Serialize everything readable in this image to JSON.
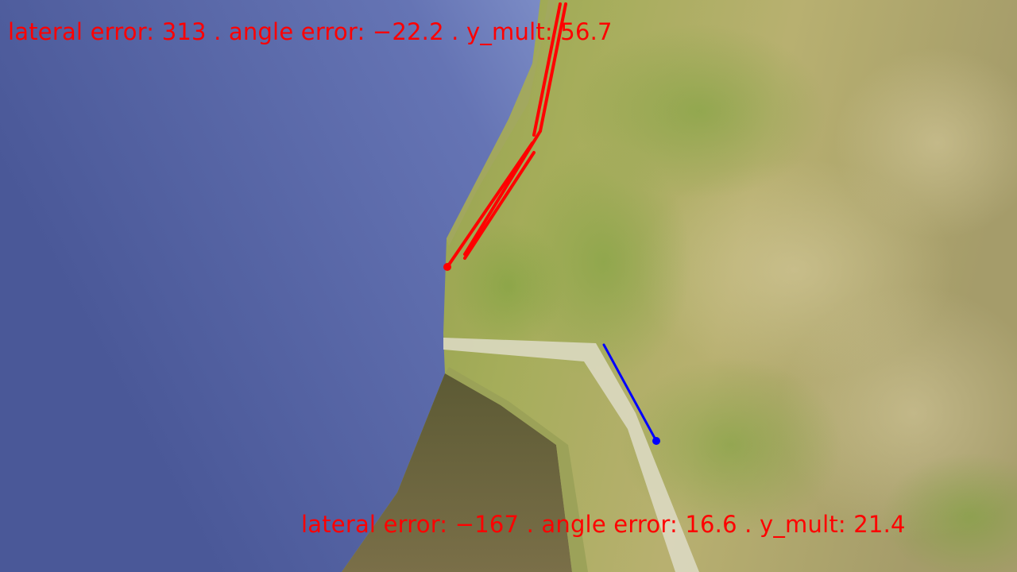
{
  "hud": {
    "top_overlay": {
      "text": "lateral error: 313 . angle error: −22.2 . y_mult: 56.7",
      "lateral_error": 313,
      "angle_error": -22.2,
      "y_mult": 56.7
    },
    "bottom_overlay": {
      "text": "lateral error: −167 . angle error: 16.6 . y_mult: 21.4",
      "lateral_error": -167,
      "angle_error": 16.6,
      "y_mult": 21.4
    }
  },
  "colors": {
    "sky_top": "#b3c3ea",
    "sky_dark": "#4b5a9b",
    "grass": "#8ea24a",
    "grass_light": "#b9b27a",
    "dirt": "#6f6a3c",
    "overlay_red": "#ff0000",
    "overlay_blue": "#0000ff",
    "lane_line": "#d9d8c4"
  },
  "icons": {
    "red_marker": "red-dot-icon",
    "blue_marker": "blue-dot-icon"
  }
}
